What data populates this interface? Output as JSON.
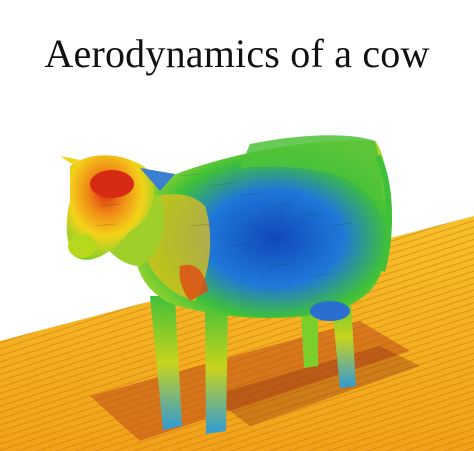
{
  "title": "Aerodynamics of a cow",
  "scene": {
    "subject": "cow",
    "palette": {
      "hot": "#d62a12",
      "warm": "#f08a16",
      "mid": "#f4d21a",
      "cool": "#3fc03a",
      "cold": "#1f78d8",
      "colder": "#1048b8"
    }
  }
}
